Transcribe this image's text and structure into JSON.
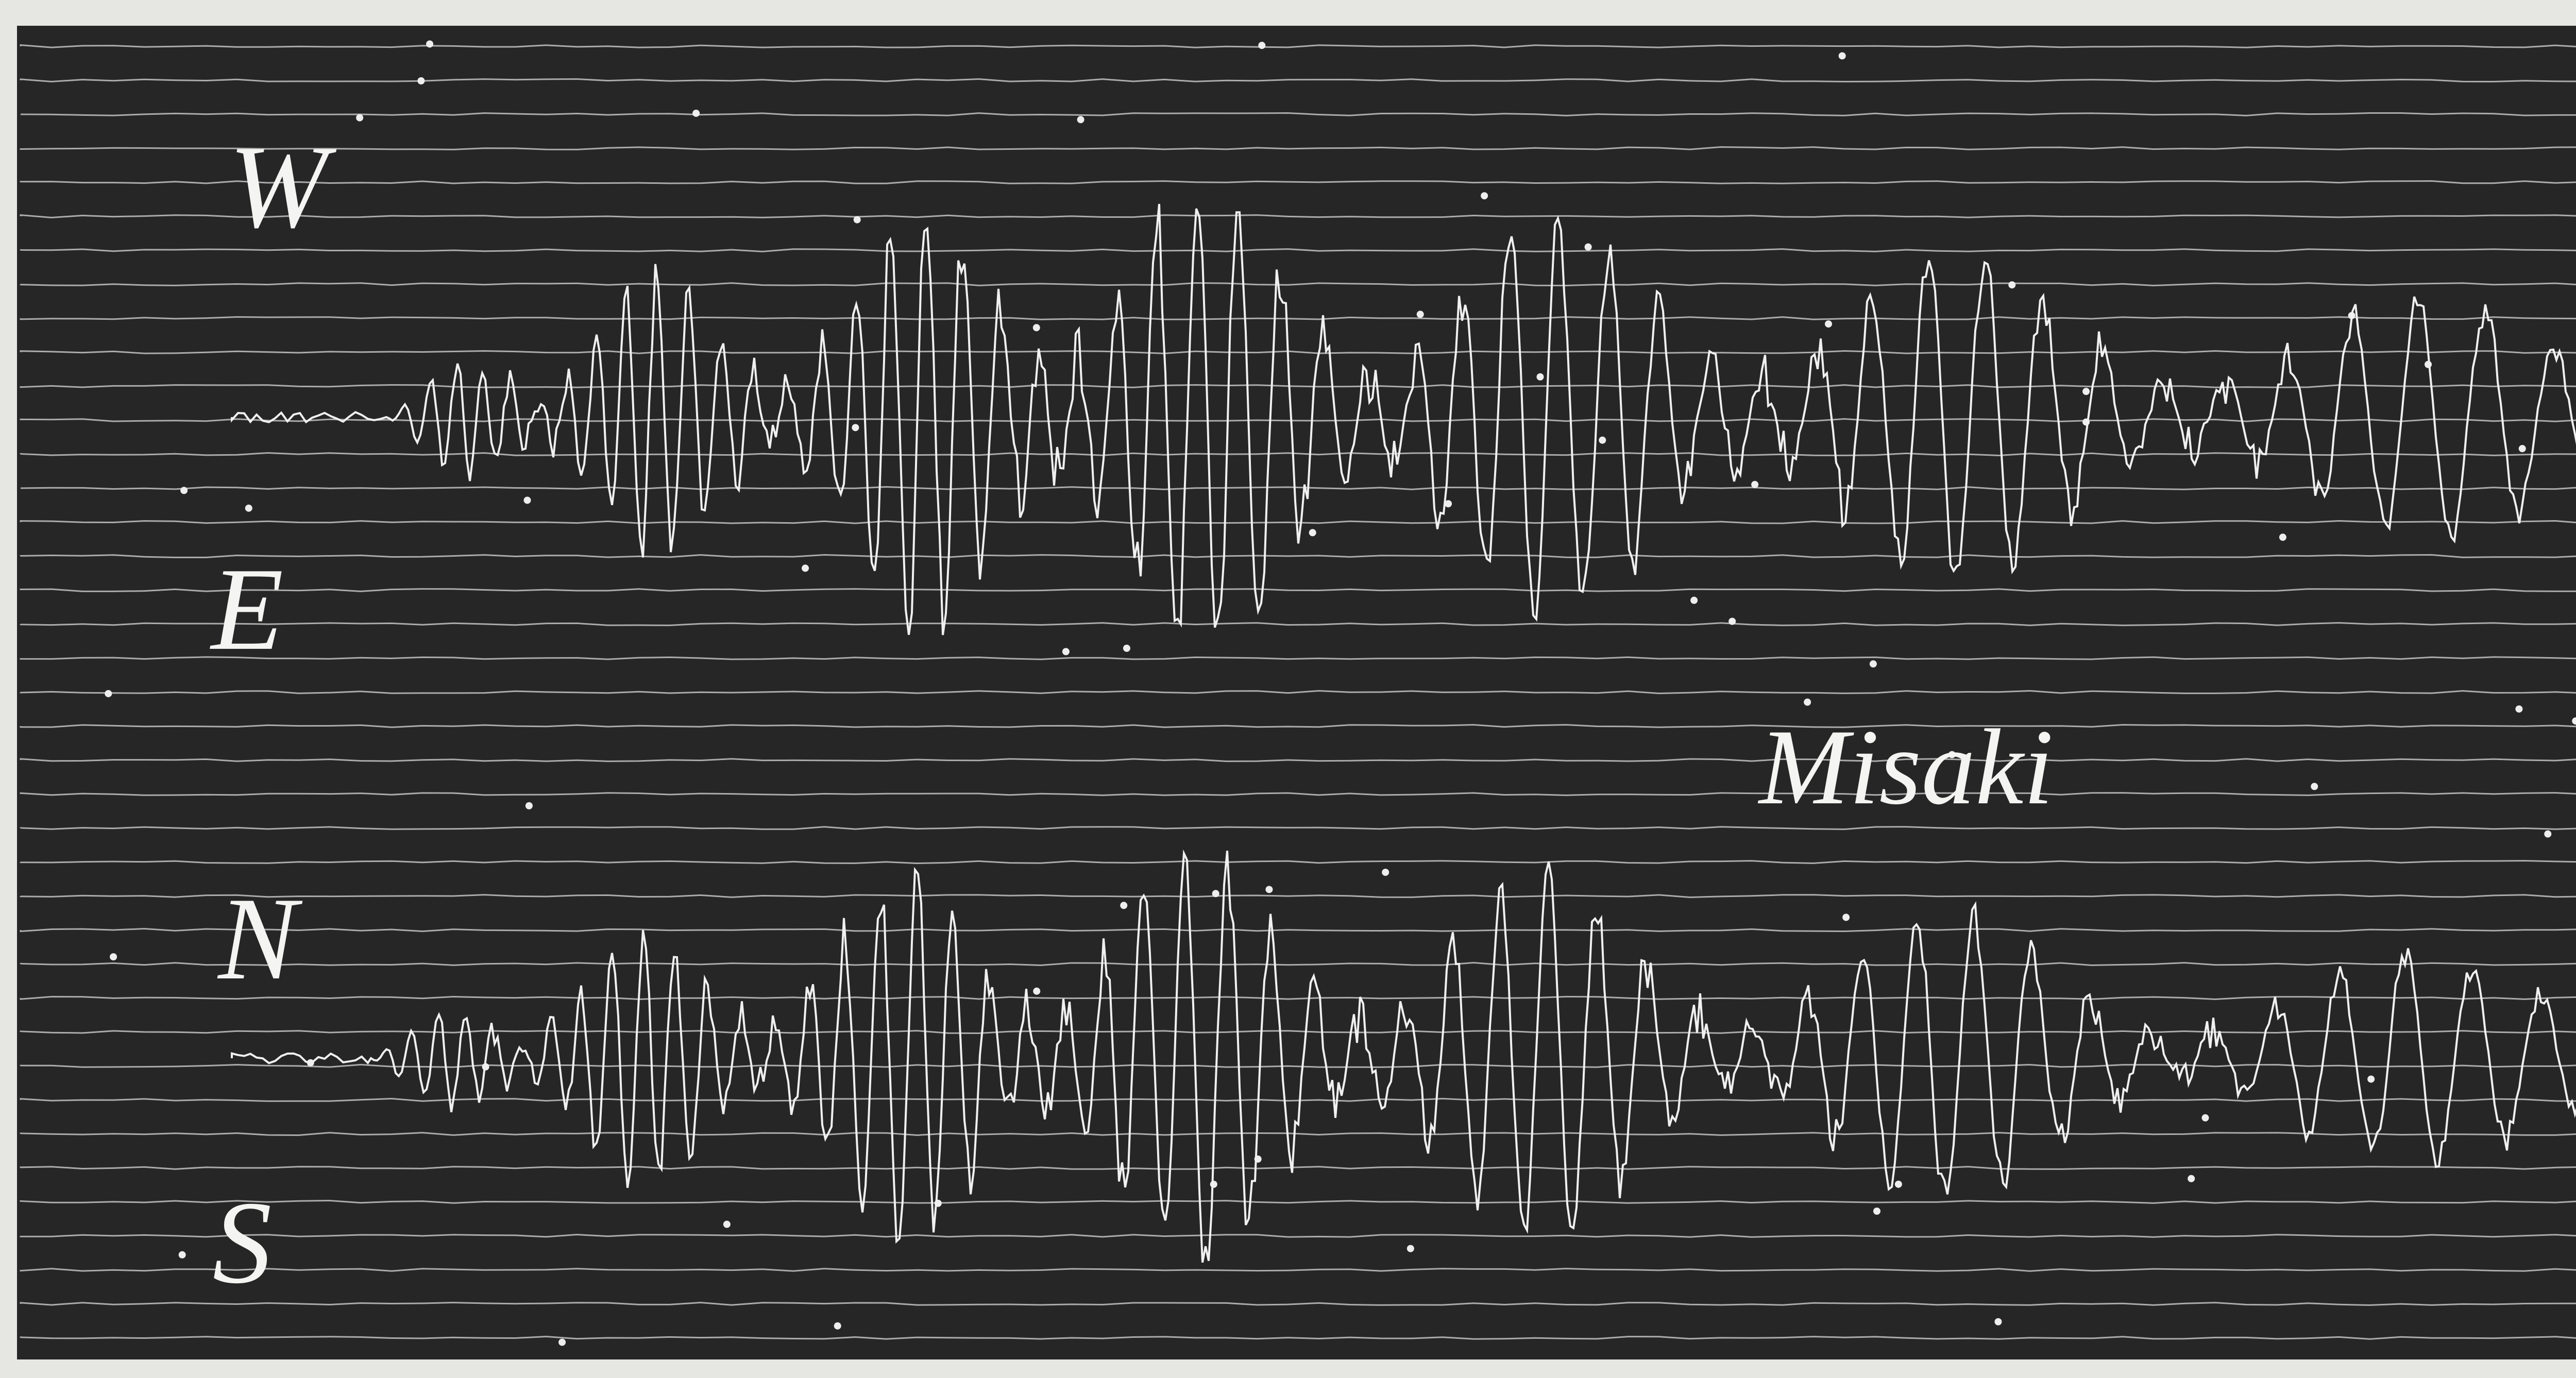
{
  "labels": {
    "w": "W",
    "e": "E",
    "n": "N",
    "s": "S"
  },
  "station": "Misaki"
}
